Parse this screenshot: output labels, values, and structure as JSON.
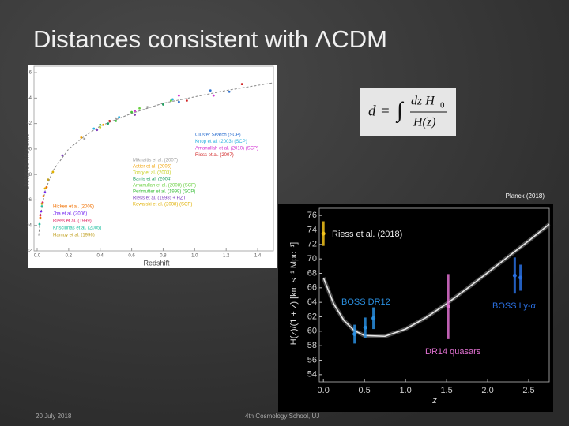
{
  "slide": {
    "title": "Distances consistent with ΛCDM",
    "planck_label": "Planck (2018)",
    "footer_date": "20 July 2018",
    "footer_event": "4th Cosmology School, UJ"
  },
  "formula": {
    "lhs": "d",
    "op": "=",
    "integral": "∫",
    "numerator": "dz H",
    "numerator_sub": "0",
    "denominator": "H(z)"
  },
  "chart_data": [
    {
      "type": "scatter",
      "xlabel": "Redshift",
      "ylabel": "Distance Modulus",
      "xlim": [
        -0.02,
        1.5
      ],
      "ylim": [
        32,
        46.5
      ],
      "xticks": [
        {
          "value": 0,
          "label": "0.0"
        },
        0.2,
        0.4,
        0.6,
        0.8,
        {
          "value": 1,
          "label": "1.0"
        },
        1.2,
        1.4
      ],
      "yticks": [
        32,
        34,
        36,
        38,
        40,
        42,
        44,
        46
      ],
      "model": {
        "x": [
          0.01,
          0.02,
          0.05,
          0.1,
          0.2,
          0.3,
          0.4,
          0.5,
          0.6,
          0.8,
          1.0,
          1.2,
          1.4,
          1.5
        ],
        "values": [
          33.2,
          34.7,
          36.7,
          38.3,
          40.0,
          41.0,
          41.8,
          42.3,
          42.8,
          43.6,
          44.1,
          44.6,
          45.0,
          45.2
        ],
        "color": "#888888"
      },
      "series": [
        {
          "name": "Cluster Search (SCP)",
          "color": "#2b6fd0",
          "x": [
            0.9,
            1.1,
            1.22
          ],
          "values": [
            43.7,
            44.6,
            44.5
          ]
        },
        {
          "name": "Knop et al. (2003) (SCP)",
          "color": "#2ab0e0",
          "x": [
            0.36,
            0.52,
            0.86
          ],
          "values": [
            41.6,
            42.5,
            43.9
          ]
        },
        {
          "name": "Amanullah et al. (2010) (SCP)",
          "color": "#d02ad0",
          "x": [
            0.62,
            0.9,
            1.12
          ],
          "values": [
            43.0,
            44.2,
            44.2
          ]
        },
        {
          "name": "Riess et al. (2007)",
          "color": "#d02020",
          "x": [
            0.46,
            0.95,
            1.3
          ],
          "values": [
            42.2,
            43.8,
            45.1
          ]
        },
        {
          "name": "Miknaitis et al. (2007)",
          "color": "#a0a0a0",
          "x": [
            0.3,
            0.5,
            0.7
          ],
          "values": [
            40.8,
            42.4,
            43.3
          ]
        },
        {
          "name": "Astier et al. (2006)",
          "color": "#f0a000",
          "x": [
            0.28,
            0.42,
            0.62
          ],
          "values": [
            40.9,
            41.9,
            42.7
          ]
        },
        {
          "name": "Tonry et al. (2003)",
          "color": "#c8d020",
          "x": [
            0.4,
            0.6
          ],
          "values": [
            41.7,
            42.9
          ]
        },
        {
          "name": "Barris et al. (2004)",
          "color": "#20a060",
          "x": [
            0.45,
            0.8
          ],
          "values": [
            42.0,
            43.5
          ]
        },
        {
          "name": "Amanullah et al. (2008) (SCP)",
          "color": "#6ad040",
          "x": [
            0.65,
            0.85
          ],
          "values": [
            43.2,
            43.8
          ]
        },
        {
          "name": "Perlmutter et al. (1999) (SCP)",
          "color": "#40c040",
          "x": [
            0.4,
            0.5,
            0.6
          ],
          "values": [
            41.9,
            42.2,
            42.9
          ]
        },
        {
          "name": "Riess et al. (1998) + HZT",
          "color": "#8040c0",
          "x": [
            0.16,
            0.38,
            0.62
          ],
          "values": [
            39.5,
            41.5,
            42.7
          ]
        },
        {
          "name": "Kowalski et al. (2008) (SCP)",
          "color": "#e0b000",
          "x": [
            0.05,
            0.1
          ],
          "values": [
            36.9,
            38.2
          ]
        },
        {
          "name": "Hicken et al. (2009)",
          "color": "#f07000",
          "x": [
            0.02,
            0.04,
            0.06
          ],
          "values": [
            34.6,
            36.3,
            37.0
          ]
        },
        {
          "name": "Jha et al. (2006)",
          "color": "#7020f0",
          "x": [
            0.025,
            0.05
          ],
          "values": [
            35.1,
            36.6
          ]
        },
        {
          "name": "Riess et al. (1999)",
          "color": "#e02060",
          "x": [
            0.02,
            0.035
          ],
          "values": [
            34.8,
            35.8
          ]
        },
        {
          "name": "Krisciunas et al. (2005)",
          "color": "#20c0a0",
          "x": [
            0.015,
            0.03
          ],
          "values": [
            34.1,
            35.5
          ]
        },
        {
          "name": "Hamuy et al. (1996)",
          "color": "#c0a020",
          "x": [
            0.03,
            0.07
          ],
          "values": [
            35.7,
            37.6
          ]
        }
      ]
    },
    {
      "type": "scatter",
      "xlabel": "z",
      "ylabel": "H(z)/(1 + z) [km s⁻¹ Mpc⁻¹]",
      "xlim": [
        -0.05,
        2.75
      ],
      "ylim": [
        53,
        77
      ],
      "xticks": [
        {
          "value": 0,
          "label": "0.0"
        },
        0.5,
        {
          "value": 1,
          "label": "1.0"
        },
        1.5,
        {
          "value": 2,
          "label": "2.0"
        },
        2.5
      ],
      "yticks": [
        54,
        56,
        58,
        60,
        62,
        64,
        66,
        68,
        70,
        72,
        74,
        76
      ],
      "model": {
        "x": [
          0,
          0.125,
          0.25,
          0.375,
          0.5,
          0.75,
          1,
          1.25,
          1.5,
          1.75,
          2,
          2.25,
          2.5,
          2.75
        ],
        "values": [
          67.4,
          63.8,
          61.5,
          60.1,
          59.4,
          59.3,
          60.3,
          61.9,
          63.8,
          65.9,
          68.1,
          70.3,
          72.5,
          74.8
        ],
        "color": "#e8e8e8"
      },
      "series": [
        {
          "name": "Riess et al. (2018)",
          "color": "#f2c21b",
          "x": [
            0
          ],
          "values": [
            73.5
          ],
          "errors": [
            1.7
          ]
        },
        {
          "name": "BOSS DR12",
          "color": "#2a8fe0",
          "x": [
            0.38,
            0.51,
            0.61
          ],
          "values": [
            59.6,
            60.5,
            61.8
          ],
          "errors": [
            1.3,
            1.4,
            1.5
          ]
        },
        {
          "name": "DR14 quasars",
          "color": "#e070d0",
          "x": [
            1.52
          ],
          "values": [
            63.4
          ],
          "errors": [
            4.5
          ]
        },
        {
          "name": "BOSS Ly-α",
          "color": "#2a6fe0",
          "x": [
            2.33,
            2.4
          ],
          "values": [
            67.7,
            67.4
          ],
          "errors": [
            2.5,
            1.8
          ]
        }
      ]
    }
  ]
}
